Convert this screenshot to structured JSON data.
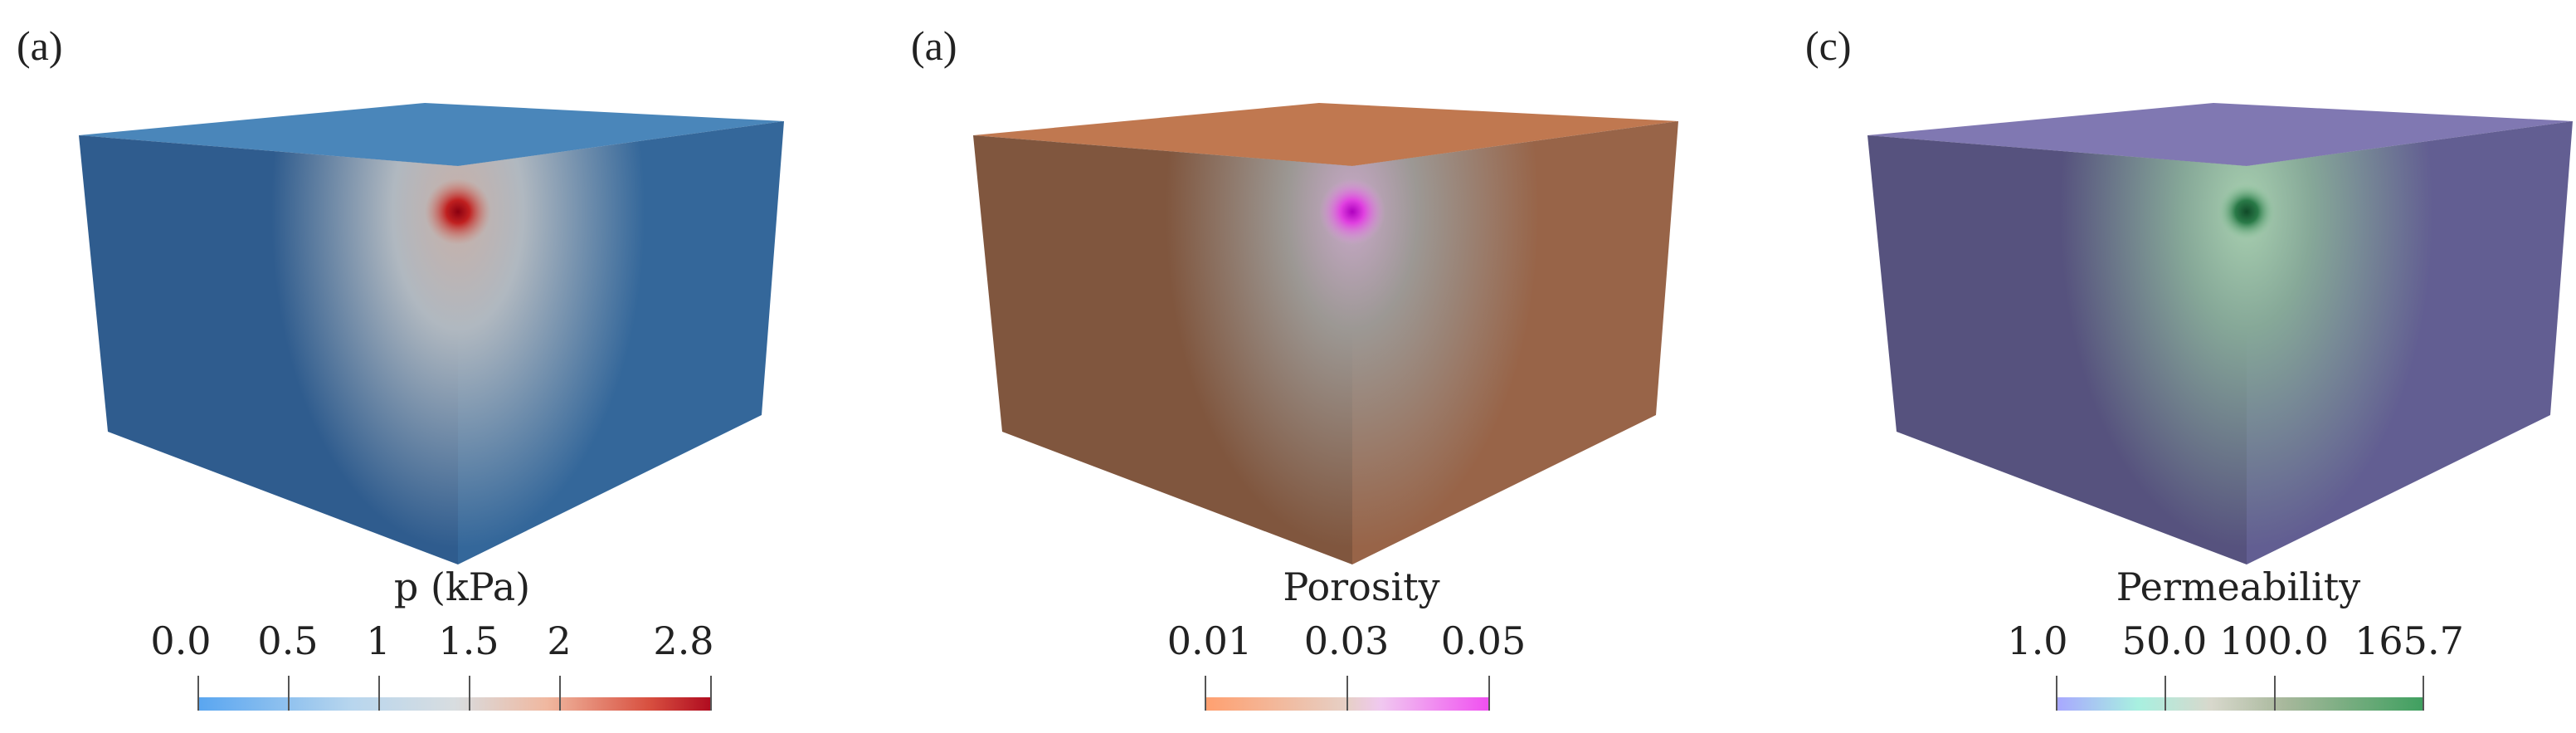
{
  "panels": [
    {
      "label": "(a)",
      "colorbar_title": "p (kPa)",
      "ticks": [
        "0.0",
        "0.5",
        "1",
        "1.5",
        "2",
        "2.8"
      ],
      "side_left_color": "#2f5c8e",
      "side_right_color": "#34679a",
      "top_color": "#4a86ba",
      "center_color": "#c2c2c0",
      "hot_color": "#b01020",
      "colormap": [
        "#5aa6f0",
        "#b8d6ee",
        "#d8dde0",
        "#f0b8a0",
        "#d85040",
        "#b00c20"
      ]
    },
    {
      "label": "(a)",
      "colorbar_title": "Porosity",
      "ticks": [
        "0.01",
        "0.03",
        "0.05"
      ],
      "side_left_color": "#80563e",
      "side_right_color": "#986448",
      "top_color": "#c07850",
      "center_color": "#a8a8a4",
      "hot_color": "#d020d0",
      "colormap": [
        "#ffa070",
        "#e6d0c6",
        "#f0c8f0",
        "#f050f0"
      ]
    },
    {
      "label": "(c)",
      "colorbar_title": "Permeability",
      "ticks": [
        "1.0",
        "50.0",
        "100.0",
        "165.7"
      ],
      "side_left_color": "#56527e",
      "side_right_color": "#625e92",
      "top_color": "#8078b2",
      "center_color": "#9cc8a8",
      "hot_color": "#1a6a3a",
      "colormap": [
        "#a8a8ff",
        "#a8f0e0",
        "#d8d8cc",
        "#a8b89c",
        "#40a060"
      ]
    }
  ]
}
